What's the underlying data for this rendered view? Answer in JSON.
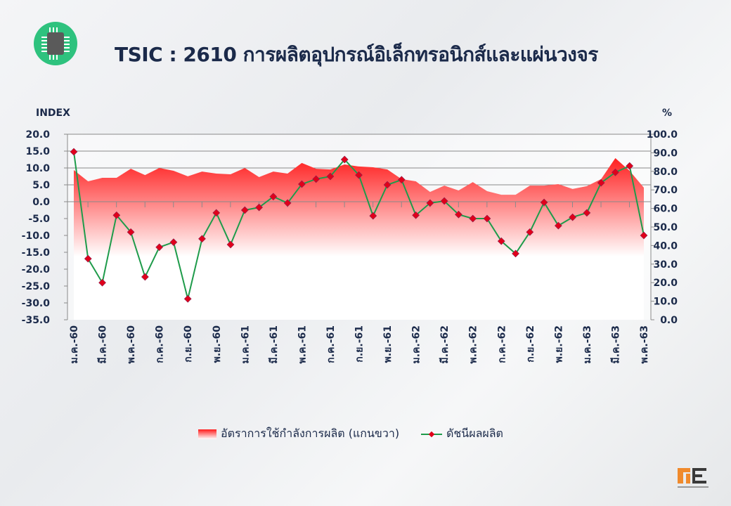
{
  "title": "TSIC : 2610 การผลิตอุปกรณ์อิเล็กทรอนิกส์และแผ่นวงจร",
  "icon": "microchip-icon",
  "colors": {
    "index_line": "#1e9b4a",
    "index_marker": "#e0001b",
    "area_top": "#ff1a1a",
    "title": "#1b2a4a",
    "icon_bg": "#2ec27e"
  },
  "logo_text": "OIE",
  "chart_data": {
    "type": "line+area",
    "left_axis_label": "INDEX",
    "right_axis_label": "%",
    "left_ylim": [
      -35,
      20
    ],
    "right_ylim": [
      0,
      100
    ],
    "left_ticks": [
      "20.0",
      "15.0",
      "10.0",
      "5.0",
      "0.0",
      "-5.0",
      "-10.0",
      "-15.0",
      "-20.0",
      "-25.0",
      "-30.0",
      "-35.0"
    ],
    "right_ticks": [
      "100.0",
      "90.0",
      "80.0",
      "70.0",
      "60.0",
      "50.0",
      "40.0",
      "30.0",
      "20.0",
      "10.0",
      "0.0"
    ],
    "grid": true,
    "legend_position": "bottom",
    "x_tick_labels": [
      "ม.ค.-60",
      "มี.ค.-60",
      "พ.ค.-60",
      "ก.ค.-60",
      "ก.ย.-60",
      "พ.ย.-60",
      "ม.ค.-61",
      "มี.ค.-61",
      "พ.ค.-61",
      "ก.ค.-61",
      "ก.ย.-61",
      "พ.ย.-61",
      "ม.ค.-62",
      "มี.ค.-62",
      "พ.ค.-62",
      "ก.ค.-62",
      "ก.ย.-62",
      "พ.ย.-62",
      "ม.ค.-63",
      "มี.ค.-63",
      "พ.ค.-63"
    ],
    "series": [
      {
        "name": "อัตราการใช้กำลังการผลิต (แกนขวา)",
        "axis": "right",
        "kind": "area",
        "values": [
          80.7,
          74.6,
          76.5,
          76.5,
          81.4,
          78.0,
          81.8,
          80.3,
          77.3,
          79.9,
          78.8,
          78.4,
          81.8,
          76.9,
          79.9,
          78.8,
          84.5,
          81.4,
          81.0,
          83.7,
          82.6,
          82.2,
          81.0,
          75.8,
          74.6,
          68.9,
          72.3,
          69.7,
          74.2,
          69.3,
          67.4,
          67.4,
          72.3,
          72.3,
          73.1,
          70.5,
          72.0,
          75.8,
          87.1,
          80.3,
          71.2
        ]
      },
      {
        "name": "ดัชนีผลผลิต",
        "axis": "left",
        "kind": "line",
        "values": [
          14.8,
          -16.9,
          -24.0,
          -4.0,
          -9.0,
          -22.3,
          -13.5,
          -12.0,
          -28.8,
          -11.0,
          -3.3,
          -12.7,
          -2.5,
          -1.7,
          1.5,
          -0.4,
          5.2,
          6.7,
          7.5,
          12.5,
          7.9,
          -4.2,
          5.0,
          6.5,
          -4.0,
          -0.4,
          0.2,
          -3.8,
          -5.0,
          -5.0,
          -11.7,
          -15.4,
          -9.0,
          -0.2,
          -7.1,
          -4.6,
          -3.3,
          5.6,
          8.7,
          10.6,
          -10.0
        ]
      }
    ]
  }
}
